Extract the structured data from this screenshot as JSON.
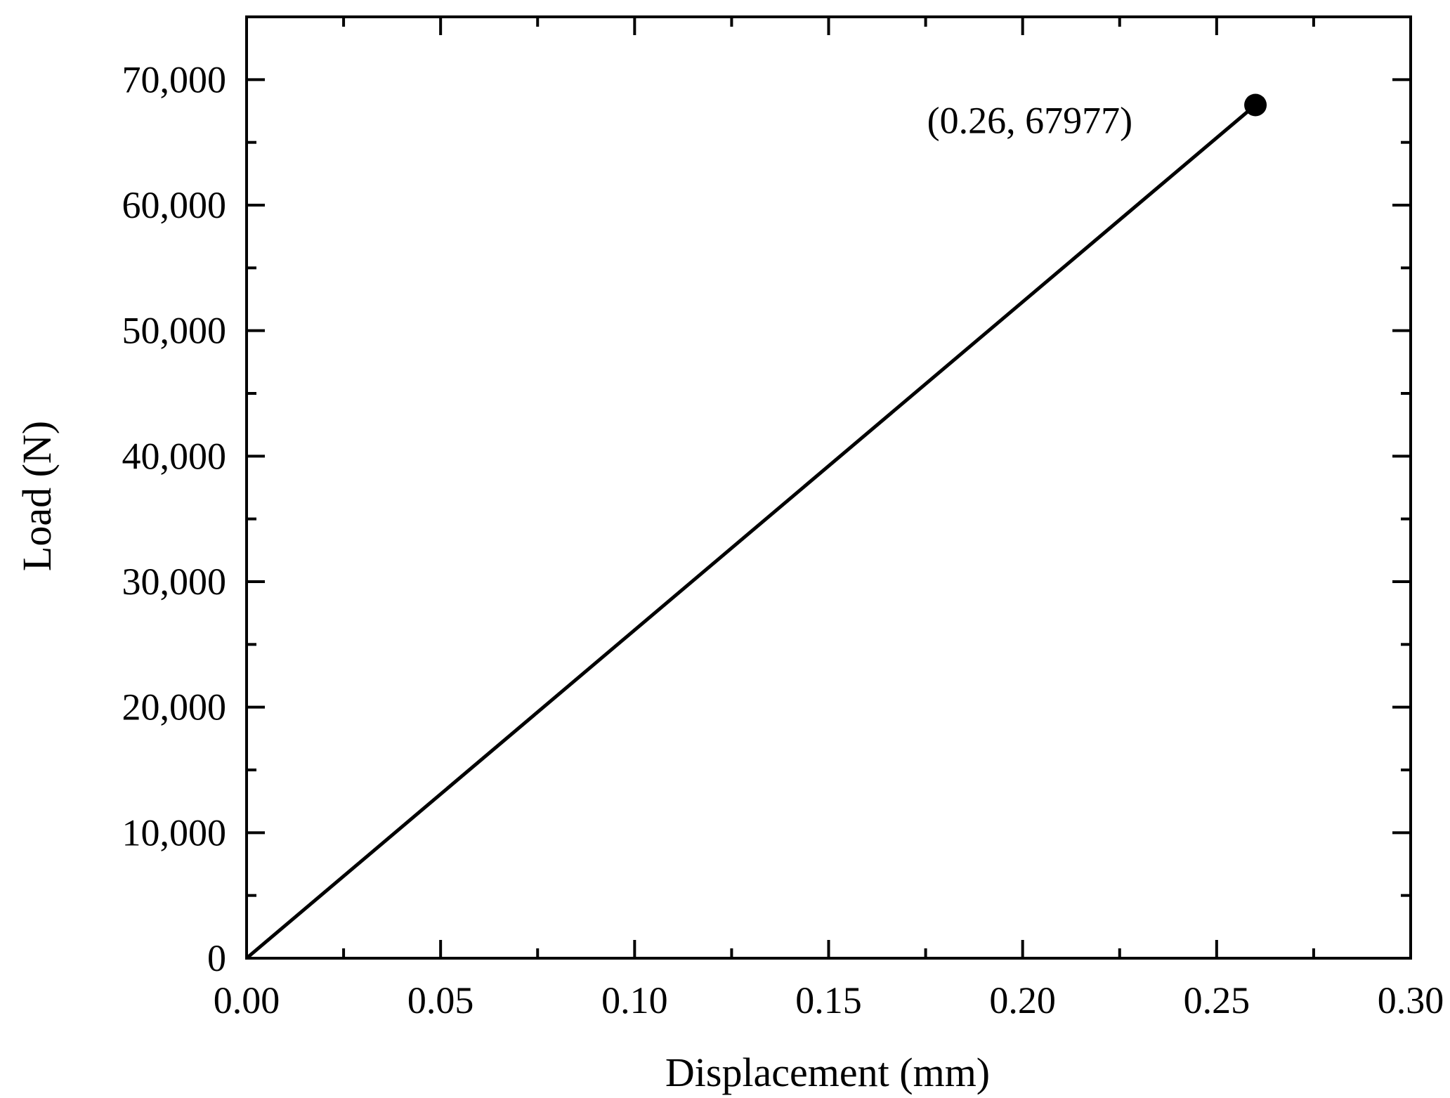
{
  "chart_data": {
    "type": "line",
    "title": "",
    "xlabel": "Displacement (mm)",
    "ylabel": "Load (N)",
    "xlim": [
      0,
      0.3
    ],
    "ylim": [
      0,
      75000
    ],
    "x_ticks": [
      0,
      0.05,
      0.1,
      0.15,
      0.2,
      0.25,
      0.3
    ],
    "x_tick_labels": [
      "0.00",
      "0.05",
      "0.10",
      "0.15",
      "0.20",
      "0.25",
      "0.30"
    ],
    "y_ticks": [
      0,
      10000,
      20000,
      30000,
      40000,
      50000,
      60000,
      70000
    ],
    "y_tick_labels": [
      "0",
      "10,000",
      "20,000",
      "30,000",
      "40,000",
      "50,000",
      "60,000",
      "70,000"
    ],
    "x_minor_step": 0.025,
    "y_minor_step": 5000,
    "grid": false,
    "series": [
      {
        "x": [
          0,
          0.26
        ],
        "y": [
          0,
          67977
        ]
      }
    ],
    "marker": {
      "x": 0.26,
      "y": 67977
    },
    "annotation": {
      "text": "(0.26, 67977)",
      "x": 0.26,
      "y": 67977
    },
    "colors": {
      "line": "#000000",
      "marker": "#000000",
      "axes": "#000000"
    }
  }
}
